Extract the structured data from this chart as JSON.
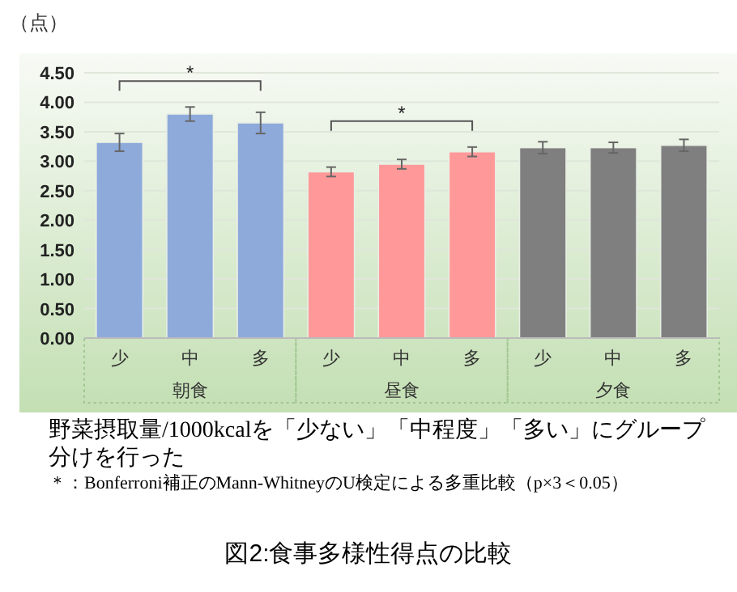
{
  "chart_data": {
    "type": "bar",
    "title": "図2:食事多様性得点の比較",
    "ylabel": "（点）",
    "categories": [
      "少",
      "中",
      "多",
      "少",
      "中",
      "多",
      "少",
      "中",
      "多"
    ],
    "series": [
      {
        "name": "朝食",
        "color": "#8eaadb",
        "values": [
          3.32,
          3.8,
          3.65,
          null,
          null,
          null,
          null,
          null,
          null
        ],
        "errors": [
          0.15,
          0.12,
          0.18,
          null,
          null,
          null,
          null,
          null,
          null
        ]
      },
      {
        "name": "昼食",
        "color": "#ff9999",
        "values": [
          null,
          null,
          null,
          2.82,
          2.95,
          3.16,
          null,
          null,
          null
        ],
        "errors": [
          null,
          null,
          null,
          0.08,
          0.08,
          0.08,
          null,
          null,
          null
        ]
      },
      {
        "name": "夕食",
        "color": "#7f7f7f",
        "values": [
          null,
          null,
          null,
          null,
          null,
          null,
          3.23,
          3.23,
          3.27
        ],
        "errors": [
          null,
          null,
          null,
          null,
          null,
          null,
          0.1,
          0.09,
          0.1
        ]
      }
    ],
    "ylim": [
      0,
      4.5
    ],
    "yticks": [
      {
        "value": 0,
        "label": "0.00"
      },
      {
        "value": 0.5,
        "label": "0.50"
      },
      {
        "value": 1,
        "label": "1.00"
      },
      {
        "value": 1.5,
        "label": "1.50"
      },
      {
        "value": 2,
        "label": "2.00"
      },
      {
        "value": 2.5,
        "label": "2.50"
      },
      {
        "value": 3,
        "label": "3.00"
      },
      {
        "value": 3.5,
        "label": "3.50"
      },
      {
        "value": 4,
        "label": "4.00"
      },
      {
        "value": 4.5,
        "label": "4.50"
      }
    ],
    "grid": "y",
    "annotations": [
      "*",
      "*",
      "野菜摂取量/1000kcalを「少ない」「中程度」「多い」にグループ分けを行った",
      "＊：Bonferroni補正のMann‐WhitneyのU検定による多重比較（p×3＜0.05）"
    ]
  }
}
